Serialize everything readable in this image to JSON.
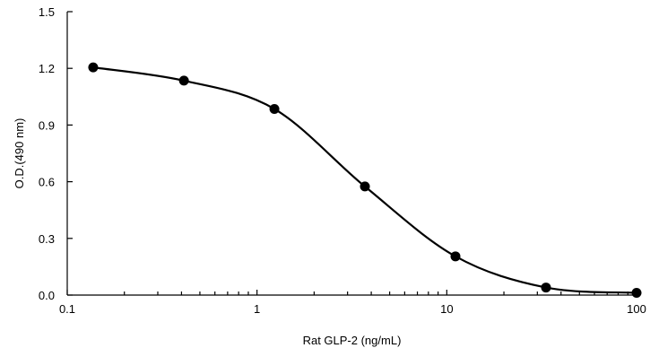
{
  "chart_data": {
    "type": "scatter",
    "title": "",
    "xlabel": "Rat GLP-2 (ng/mL)",
    "ylabel": "O.D.(490 nm)",
    "x_scale": "log",
    "xlim": [
      0.1,
      100
    ],
    "ylim": [
      0,
      1.5
    ],
    "x_ticks": [
      "0.1",
      "1",
      "10",
      "100"
    ],
    "y_ticks": [
      "0.0",
      "0.3",
      "0.6",
      "0.9",
      "1.2",
      "1.5"
    ],
    "grid": false,
    "legend": "none",
    "series": [
      {
        "points": [
          {
            "x": 0.137,
            "y": 1.205
          },
          {
            "x": 0.412,
            "y": 1.135
          },
          {
            "x": 1.235,
            "y": 0.985
          },
          {
            "x": 3.704,
            "y": 0.575
          },
          {
            "x": 11.11,
            "y": 0.205
          },
          {
            "x": 33.33,
            "y": 0.04
          },
          {
            "x": 100,
            "y": 0.012
          }
        ],
        "fit_curve": "smooth sigmoid through points",
        "color": "#000000"
      }
    ]
  }
}
